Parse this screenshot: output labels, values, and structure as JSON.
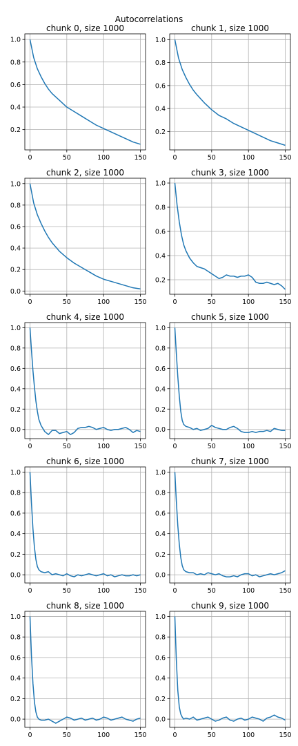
{
  "figure": {
    "suptitle": "Autocorrelations"
  },
  "chart_data": [
    {
      "type": "line",
      "title": "chunk 0, size 1000",
      "x": [
        0,
        5,
        10,
        15,
        20,
        25,
        30,
        40,
        50,
        60,
        70,
        80,
        90,
        100,
        110,
        120,
        130,
        140,
        150
      ],
      "y": [
        1.0,
        0.84,
        0.74,
        0.67,
        0.61,
        0.56,
        0.52,
        0.46,
        0.4,
        0.36,
        0.32,
        0.28,
        0.24,
        0.21,
        0.18,
        0.15,
        0.12,
        0.09,
        0.07
      ],
      "xlim": [
        -7,
        157
      ],
      "ylim": [
        0.02,
        1.05
      ],
      "xticks": [
        0,
        50,
        100,
        150
      ],
      "yticks": [
        0.2,
        0.4,
        0.6,
        0.8,
        1.0
      ],
      "yticklabels": [
        "0.2",
        "0.4",
        "0.6",
        "0.8",
        "1.0"
      ],
      "grid": true
    },
    {
      "type": "line",
      "title": "chunk 1, size 1000",
      "x": [
        0,
        5,
        10,
        15,
        20,
        25,
        30,
        40,
        50,
        60,
        70,
        80,
        90,
        100,
        110,
        120,
        130,
        140,
        150
      ],
      "y": [
        1.0,
        0.84,
        0.74,
        0.67,
        0.61,
        0.56,
        0.52,
        0.45,
        0.39,
        0.34,
        0.31,
        0.27,
        0.24,
        0.21,
        0.18,
        0.15,
        0.12,
        0.1,
        0.08
      ],
      "xlim": [
        -7,
        157
      ],
      "ylim": [
        0.04,
        1.05
      ],
      "xticks": [
        0,
        50,
        100,
        150
      ],
      "yticks": [
        0.2,
        0.4,
        0.6,
        0.8,
        1.0
      ],
      "yticklabels": [
        "0.2",
        "0.4",
        "0.6",
        "0.8",
        "1.0"
      ],
      "grid": true
    },
    {
      "type": "line",
      "title": "chunk 2, size 1000",
      "x": [
        0,
        5,
        10,
        15,
        20,
        25,
        30,
        40,
        50,
        60,
        70,
        80,
        90,
        100,
        110,
        120,
        130,
        140,
        150
      ],
      "y": [
        1.0,
        0.82,
        0.71,
        0.63,
        0.56,
        0.5,
        0.45,
        0.37,
        0.31,
        0.26,
        0.22,
        0.18,
        0.14,
        0.11,
        0.09,
        0.07,
        0.05,
        0.03,
        0.02
      ],
      "xlim": [
        -7,
        157
      ],
      "ylim": [
        -0.03,
        1.05
      ],
      "xticks": [
        0,
        50,
        100,
        150
      ],
      "yticks": [
        0.0,
        0.2,
        0.4,
        0.6,
        0.8,
        1.0
      ],
      "yticklabels": [
        "0.0",
        "0.2",
        "0.4",
        "0.6",
        "0.8",
        "1.0"
      ],
      "grid": true
    },
    {
      "type": "line",
      "title": "chunk 3, size 1000",
      "x": [
        0,
        3,
        6,
        9,
        12,
        15,
        20,
        25,
        30,
        35,
        40,
        45,
        50,
        55,
        60,
        65,
        70,
        75,
        80,
        85,
        90,
        95,
        100,
        105,
        110,
        115,
        120,
        125,
        130,
        135,
        140,
        145,
        150
      ],
      "y": [
        1.0,
        0.82,
        0.68,
        0.57,
        0.49,
        0.44,
        0.38,
        0.34,
        0.31,
        0.3,
        0.29,
        0.27,
        0.25,
        0.23,
        0.21,
        0.22,
        0.24,
        0.23,
        0.23,
        0.22,
        0.23,
        0.23,
        0.24,
        0.22,
        0.18,
        0.17,
        0.17,
        0.18,
        0.17,
        0.16,
        0.17,
        0.15,
        0.12
      ],
      "xlim": [
        -7,
        157
      ],
      "ylim": [
        0.08,
        1.04
      ],
      "xticks": [
        0,
        50,
        100,
        150
      ],
      "yticks": [
        0.2,
        0.4,
        0.6,
        0.8,
        1.0
      ],
      "yticklabels": [
        "0.2",
        "0.4",
        "0.6",
        "0.8",
        "1.0"
      ],
      "grid": true
    },
    {
      "type": "line",
      "title": "chunk 4, size 1000",
      "x": [
        0,
        2,
        4,
        6,
        8,
        10,
        12,
        15,
        20,
        25,
        30,
        35,
        40,
        45,
        50,
        55,
        60,
        65,
        70,
        75,
        80,
        85,
        90,
        95,
        100,
        105,
        110,
        115,
        120,
        125,
        130,
        135,
        140,
        145,
        150
      ],
      "y": [
        1.0,
        0.78,
        0.58,
        0.42,
        0.28,
        0.18,
        0.1,
        0.04,
        -0.02,
        -0.05,
        -0.01,
        -0.01,
        -0.04,
        -0.03,
        -0.02,
        -0.05,
        -0.03,
        0.01,
        0.02,
        0.02,
        0.03,
        0.02,
        0.0,
        0.01,
        0.02,
        0.0,
        -0.01,
        0.0,
        0.0,
        0.01,
        0.02,
        0.0,
        -0.03,
        -0.01,
        -0.02
      ],
      "xlim": [
        -7,
        157
      ],
      "ylim": [
        -0.09,
        1.05
      ],
      "xticks": [
        0,
        50,
        100,
        150
      ],
      "yticks": [
        0.0,
        0.2,
        0.4,
        0.6,
        0.8,
        1.0
      ],
      "yticklabels": [
        "0.0",
        "0.2",
        "0.4",
        "0.6",
        "0.8",
        "1.0"
      ],
      "grid": true
    },
    {
      "type": "line",
      "title": "chunk 5, size 1000",
      "x": [
        0,
        2,
        4,
        6,
        8,
        10,
        12,
        15,
        20,
        25,
        30,
        35,
        40,
        45,
        50,
        55,
        60,
        65,
        70,
        75,
        80,
        85,
        90,
        95,
        100,
        105,
        110,
        115,
        120,
        125,
        130,
        135,
        140,
        145,
        150
      ],
      "y": [
        1.0,
        0.75,
        0.52,
        0.33,
        0.18,
        0.09,
        0.05,
        0.03,
        0.02,
        0.0,
        0.01,
        -0.01,
        0.0,
        0.01,
        0.04,
        0.02,
        0.01,
        0.0,
        0.0,
        0.02,
        0.03,
        0.01,
        -0.02,
        -0.03,
        -0.03,
        -0.02,
        -0.03,
        -0.02,
        -0.02,
        -0.01,
        -0.02,
        0.01,
        0.0,
        -0.01,
        -0.01
      ],
      "xlim": [
        -7,
        157
      ],
      "ylim": [
        -0.09,
        1.05
      ],
      "xticks": [
        0,
        50,
        100,
        150
      ],
      "yticks": [
        0.0,
        0.2,
        0.4,
        0.6,
        0.8,
        1.0
      ],
      "yticklabels": [
        "0.0",
        "0.2",
        "0.4",
        "0.6",
        "0.8",
        "1.0"
      ],
      "grid": true
    },
    {
      "type": "line",
      "title": "chunk 6, size 1000",
      "x": [
        0,
        2,
        4,
        6,
        8,
        10,
        12,
        15,
        20,
        25,
        30,
        35,
        40,
        45,
        50,
        55,
        60,
        65,
        70,
        75,
        80,
        85,
        90,
        95,
        100,
        105,
        110,
        115,
        120,
        125,
        130,
        135,
        140,
        145,
        150
      ],
      "y": [
        1.0,
        0.7,
        0.45,
        0.27,
        0.15,
        0.08,
        0.05,
        0.03,
        0.02,
        0.03,
        0.0,
        0.01,
        0.0,
        -0.01,
        0.01,
        -0.01,
        -0.02,
        0.0,
        -0.01,
        0.0,
        0.01,
        0.0,
        -0.01,
        0.0,
        0.01,
        -0.01,
        0.0,
        -0.02,
        -0.01,
        0.0,
        -0.01,
        -0.01,
        0.0,
        -0.01,
        0.0
      ],
      "xlim": [
        -7,
        157
      ],
      "ylim": [
        -0.08,
        1.05
      ],
      "xticks": [
        0,
        50,
        100,
        150
      ],
      "yticks": [
        0.0,
        0.2,
        0.4,
        0.6,
        0.8,
        1.0
      ],
      "yticklabels": [
        "0.0",
        "0.2",
        "0.4",
        "0.6",
        "0.8",
        "1.0"
      ],
      "grid": true
    },
    {
      "type": "line",
      "title": "chunk 7, size 1000",
      "x": [
        0,
        2,
        4,
        6,
        8,
        10,
        12,
        15,
        20,
        25,
        30,
        35,
        40,
        45,
        50,
        55,
        60,
        65,
        70,
        75,
        80,
        85,
        90,
        95,
        100,
        105,
        110,
        115,
        120,
        125,
        130,
        135,
        140,
        145,
        150
      ],
      "y": [
        1.0,
        0.72,
        0.48,
        0.3,
        0.17,
        0.09,
        0.05,
        0.03,
        0.02,
        0.02,
        0.0,
        0.01,
        0.0,
        0.02,
        0.01,
        0.0,
        0.01,
        -0.01,
        -0.02,
        -0.02,
        -0.01,
        -0.02,
        0.0,
        0.01,
        0.01,
        -0.01,
        0.0,
        -0.02,
        -0.01,
        0.0,
        0.01,
        0.0,
        0.01,
        0.02,
        0.04
      ],
      "xlim": [
        -7,
        157
      ],
      "ylim": [
        -0.08,
        1.05
      ],
      "xticks": [
        0,
        50,
        100,
        150
      ],
      "yticks": [
        0.0,
        0.2,
        0.4,
        0.6,
        0.8,
        1.0
      ],
      "yticklabels": [
        "0.0",
        "0.2",
        "0.4",
        "0.6",
        "0.8",
        "1.0"
      ],
      "grid": true
    },
    {
      "type": "line",
      "title": "chunk 8, size 1000",
      "x": [
        0,
        2,
        4,
        6,
        8,
        10,
        12,
        15,
        20,
        25,
        30,
        35,
        40,
        45,
        50,
        55,
        60,
        65,
        70,
        75,
        80,
        85,
        90,
        95,
        100,
        105,
        110,
        115,
        120,
        125,
        130,
        135,
        140,
        145,
        150
      ],
      "y": [
        1.0,
        0.62,
        0.35,
        0.17,
        0.07,
        0.02,
        0.0,
        -0.01,
        -0.01,
        0.0,
        -0.02,
        -0.04,
        -0.02,
        0.0,
        0.02,
        0.01,
        -0.01,
        0.0,
        0.01,
        -0.01,
        0.0,
        0.01,
        -0.01,
        0.0,
        0.02,
        0.01,
        -0.01,
        0.0,
        0.01,
        0.02,
        0.0,
        -0.01,
        -0.02,
        0.0,
        0.01
      ],
      "xlim": [
        -7,
        157
      ],
      "ylim": [
        -0.08,
        1.05
      ],
      "xticks": [
        0,
        50,
        100,
        150
      ],
      "yticks": [
        0.0,
        0.2,
        0.4,
        0.6,
        0.8,
        1.0
      ],
      "yticklabels": [
        "0.0",
        "0.2",
        "0.4",
        "0.6",
        "0.8",
        "1.0"
      ],
      "grid": true
    },
    {
      "type": "line",
      "title": "chunk 9, size 1000",
      "x": [
        0,
        2,
        4,
        6,
        8,
        10,
        12,
        15,
        20,
        25,
        30,
        35,
        40,
        45,
        50,
        55,
        60,
        65,
        70,
        75,
        80,
        85,
        90,
        95,
        100,
        105,
        110,
        115,
        120,
        125,
        130,
        135,
        140,
        145,
        150
      ],
      "y": [
        1.0,
        0.58,
        0.28,
        0.12,
        0.05,
        0.02,
        0.0,
        0.01,
        0.0,
        0.02,
        -0.01,
        0.0,
        0.01,
        0.02,
        0.0,
        -0.02,
        -0.01,
        0.01,
        0.02,
        -0.01,
        -0.02,
        0.0,
        0.01,
        -0.01,
        0.0,
        0.02,
        0.01,
        0.0,
        -0.02,
        0.01,
        0.02,
        0.04,
        0.02,
        0.01,
        -0.01
      ],
      "xlim": [
        -7,
        157
      ],
      "ylim": [
        -0.08,
        1.05
      ],
      "xticks": [
        0,
        50,
        100,
        150
      ],
      "yticks": [
        0.0,
        0.2,
        0.4,
        0.6,
        0.8,
        1.0
      ],
      "yticklabels": [
        "0.0",
        "0.2",
        "0.4",
        "0.6",
        "0.8",
        "1.0"
      ],
      "grid": true
    }
  ],
  "style": {
    "line_color": "#1f77b4",
    "grid_color": "#b0b0b0",
    "axis_color": "#000000"
  }
}
